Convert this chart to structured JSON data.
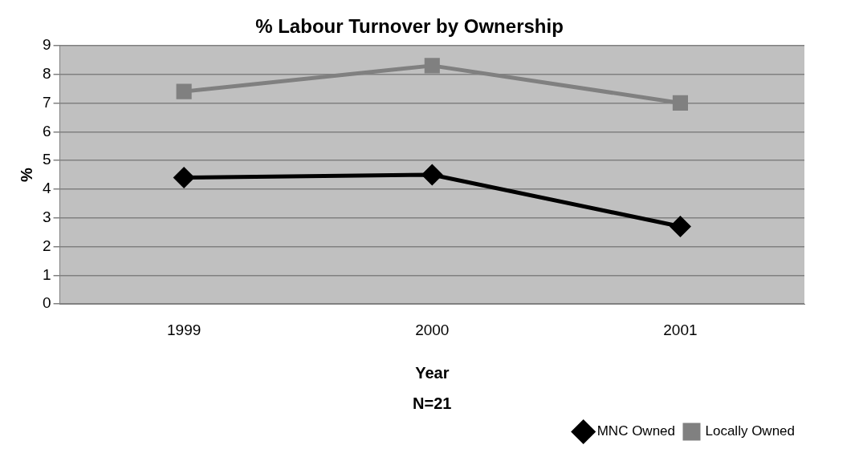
{
  "chart_data": {
    "type": "line",
    "title": "% Labour Turnover by Ownership",
    "xlabel": "Year",
    "ylabel": "%",
    "annotations": [
      "N=21"
    ],
    "categories": [
      "1999",
      "2000",
      "2001"
    ],
    "series": [
      {
        "name": "MNC Owned",
        "color": "#000000",
        "values": [
          4.4,
          4.5,
          2.7
        ],
        "marker": "diamond"
      },
      {
        "name": "Locally Owned",
        "color": "#808080",
        "values": [
          7.4,
          8.3,
          7.0
        ],
        "marker": "square"
      }
    ],
    "ylim": [
      0,
      9
    ],
    "yticks": [
      0,
      1,
      2,
      3,
      4,
      5,
      6,
      7,
      8,
      9
    ],
    "grid": "y",
    "legend": "bottom right",
    "line_style": "solid"
  }
}
